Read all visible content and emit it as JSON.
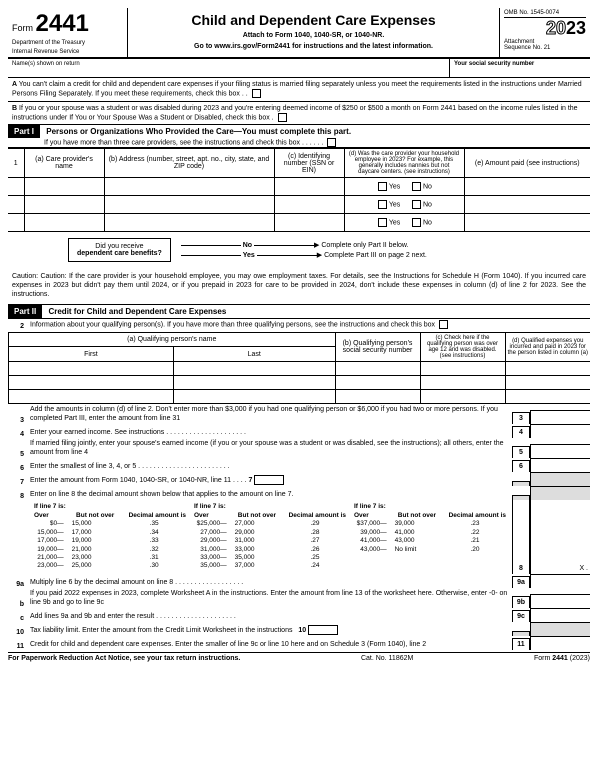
{
  "header": {
    "form_label": "Form",
    "form_number": "2441",
    "dept1": "Department of the Treasury",
    "dept2": "Internal Revenue Service",
    "title": "Child and Dependent Care Expenses",
    "attach": "Attach to Form 1040, 1040-SR, or 1040-NR.",
    "goto": "Go to www.irs.gov/Form2441 for instructions and the latest information.",
    "omb": "OMB No. 1545-0074",
    "year_prefix": "20",
    "year_suffix": "23",
    "attachment": "Attachment",
    "sequence": "Sequence No. 21"
  },
  "names": {
    "label": "Name(s) shown on return",
    "ssn_label": "Your social security number"
  },
  "warnings": {
    "A": "You can't claim a credit for child and dependent care expenses if your filing status is married filing separately unless you meet the requirements listed in the instructions under Married Persons Filing Separately. If you meet these requirements, check this box",
    "B": "If you or your spouse was a student or was disabled during 2023 and you're entering deemed income of $250 or $500 a month on Form 2441 based on the income rules listed in the instructions under If You or Your Spouse Was a Student or Disabled, check this box"
  },
  "part1": {
    "label": "Part I",
    "title": "Persons or Organizations Who Provided the Care—You must complete this part.",
    "sub": "If you have more than three care providers, see the instructions and check this box",
    "cols": {
      "a": "(a) Care provider's name",
      "b": "(b) Address (number, street, apt. no., city, state, and ZIP code)",
      "c": "(c) Identifying number (SSN or EIN)",
      "d": "(d) Was the care provider your household employee in 2023? For example, this generally includes nannies but not daycare centers. (see instructions)",
      "e": "(e) Amount paid (see instructions)"
    },
    "yes": "Yes",
    "no": "No",
    "benefits_q1": "Did you receive",
    "benefits_q2": "dependent care benefits?",
    "no_text": "No",
    "yes_text": "Yes",
    "no_action": "Complete only Part II below.",
    "yes_action": "Complete Part III on page 2 next."
  },
  "caution": "Caution: If the care provider is your household employee, you may owe employment taxes. For details, see the Instructions for Schedule H (Form 1040). If you incurred care expenses in 2023 but didn't pay them until 2024, or if you prepaid in 2023 for care to be provided in 2024, don't include these expenses in column (d) of line 2 for 2023. See the instructions.",
  "part2": {
    "label": "Part II",
    "title": "Credit for Child and Dependent Care Expenses",
    "line2": "Information about your qualifying person(s). If you have more than three qualifying persons, see the instructions and check this box",
    "cols": {
      "a": "(a) Qualifying person's name",
      "first": "First",
      "last": "Last",
      "b": "(b) Qualifying person's social security number",
      "c": "(c) Check here if the qualifying person was over age 12 and was disabled. (see instructions)",
      "d": "(d) Qualified expenses you incurred and paid in 2023 for the person listed in column (a)"
    }
  },
  "lines": {
    "l3": "Add the amounts in column (d) of line 2. Don't enter more than $3,000 if you had one qualifying person or $6,000 if you had two or more persons. If you completed Part III, enter the amount from line 31",
    "l4": "Enter your earned income. See instructions",
    "l5": "If married filing jointly, enter your spouse's earned income (if you or your spouse was a student or was disabled, see the instructions); all others, enter the amount from line 4",
    "l6": "Enter the smallest of line 3, 4, or 5",
    "l7": "Enter the amount from Form 1040, 1040-SR, or 1040-NR, line 11",
    "l8": "Enter on line 8 the decimal amount shown below that applies to the amount on line 7.",
    "l8hdr": "If line 7 is:",
    "l8_over": "Over",
    "l8_butnot": "But not over",
    "l8_dec": "Decimal amount is",
    "l9a": "Multiply line 6 by the decimal amount on line 8",
    "l9b": "If you paid 2022 expenses in 2023, complete Worksheet A in the instructions. Enter the amount from line 13 of the worksheet here. Otherwise, enter -0- on line 9b and go to line 9c",
    "l9c": "Add lines 9a and 9b and enter the result",
    "l10": "Tax liability limit. Enter the amount from the Credit Limit Worksheet in the instructions",
    "l11": "Credit for child and dependent care expenses. Enter the smaller of line 9c or line 10 here and on Schedule 3 (Form 1040), line 2"
  },
  "brackets": [
    [
      [
        "$0—15,000",
        ".35"
      ],
      [
        "15,000—17,000",
        ".34"
      ],
      [
        "17,000—19,000",
        ".33"
      ],
      [
        "19,000—21,000",
        ".32"
      ],
      [
        "21,000—23,000",
        ".31"
      ],
      [
        "23,000—25,000",
        ".30"
      ]
    ],
    [
      [
        "$25,000—27,000",
        ".29"
      ],
      [
        "27,000—29,000",
        ".28"
      ],
      [
        "29,000—31,000",
        ".27"
      ],
      [
        "31,000—33,000",
        ".26"
      ],
      [
        "33,000—35,000",
        ".25"
      ],
      [
        "35,000—37,000",
        ".24"
      ]
    ],
    [
      [
        "$37,000—39,000",
        ".23"
      ],
      [
        "39,000—41,000",
        ".22"
      ],
      [
        "41,000—43,000",
        ".21"
      ],
      [
        "43,000—No limit",
        ".20"
      ]
    ]
  ],
  "footer": {
    "left": "For Paperwork Reduction Act Notice, see your tax return instructions.",
    "center": "Cat. No. 11862M",
    "right_form": "Form 2441 (2023)"
  }
}
